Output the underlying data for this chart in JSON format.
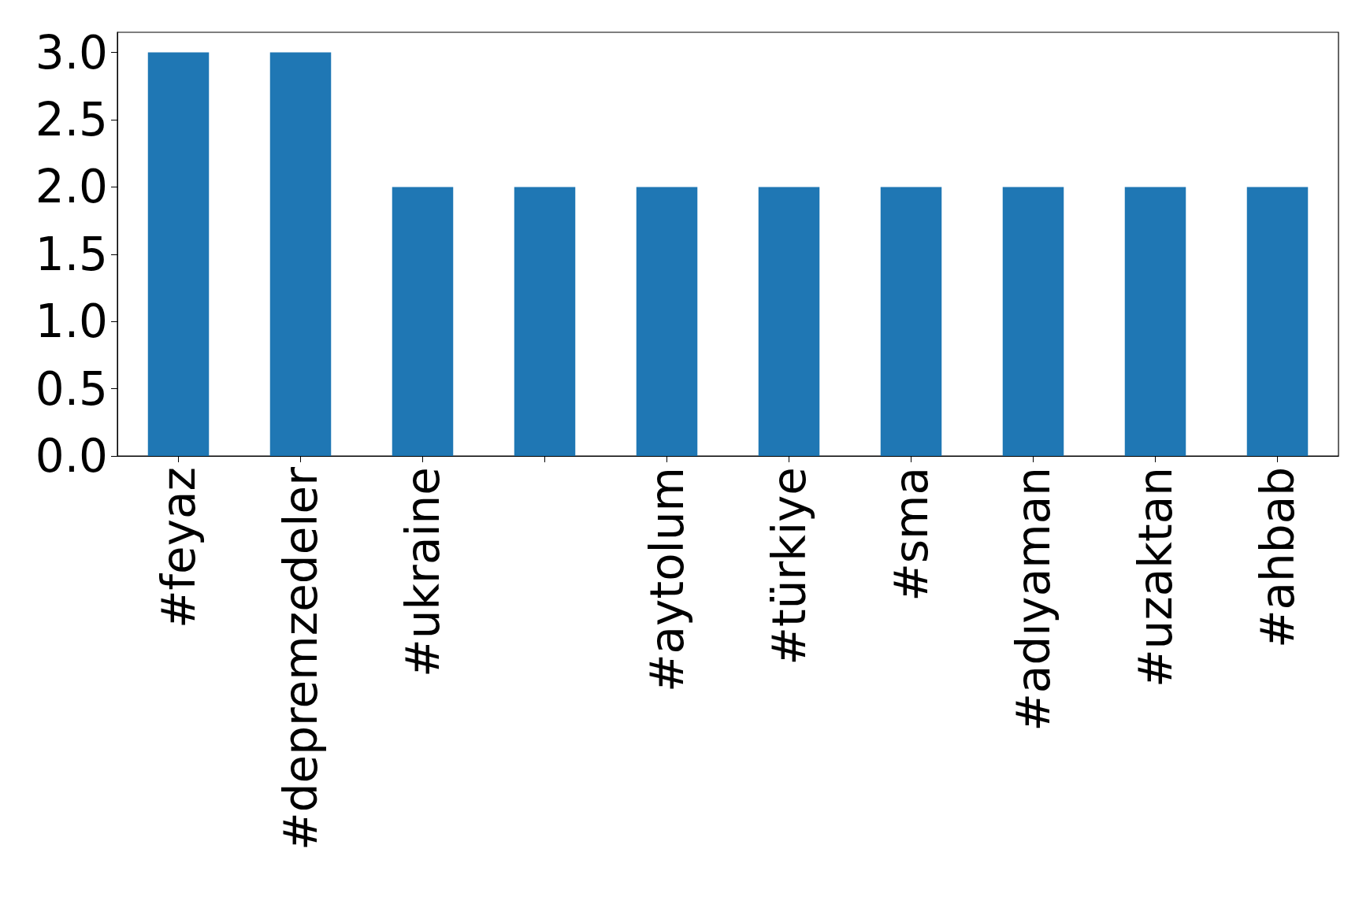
{
  "chart_data": {
    "type": "bar",
    "categories": [
      "#feyaz",
      "#depremzedeler",
      "#ukraine",
      null,
      "#aytolum",
      "#türkiye",
      "#sma",
      "#adıyaman",
      "#uzaktan",
      "#ahbab"
    ],
    "values": [
      3,
      3,
      2,
      2,
      2,
      2,
      2,
      2,
      2,
      2
    ],
    "color": "#1f77b4",
    "ylim": [
      0,
      3.15
    ],
    "yticks": [
      {
        "value": 0,
        "label": "0.0"
      },
      {
        "value": 0.5,
        "label": "0.5"
      },
      {
        "value": 1,
        "label": "1.0"
      },
      {
        "value": 1.5,
        "label": "1.5"
      },
      {
        "value": 2,
        "label": "2.0"
      },
      {
        "value": 2.5,
        "label": "2.5"
      },
      {
        "value": 3,
        "label": "3.0"
      }
    ],
    "grid": false
  }
}
